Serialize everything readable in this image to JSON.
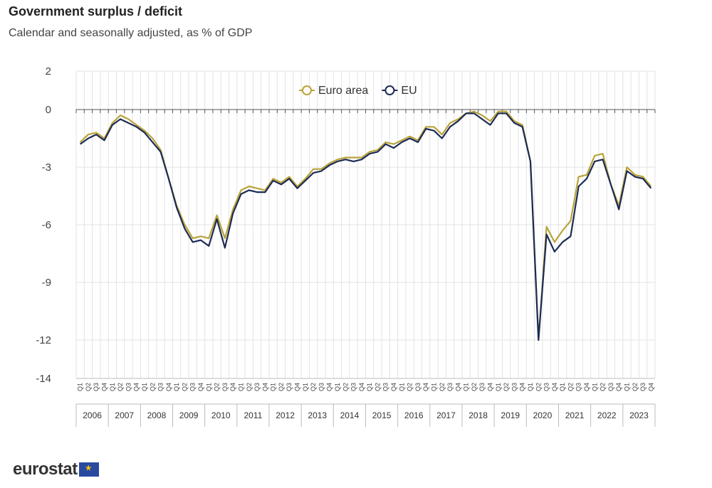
{
  "header": {
    "title": "Government surplus / deficit",
    "subtitle": "Calendar and seasonally adjusted, as % of GDP"
  },
  "logo": {
    "text": "eurostat"
  },
  "colors": {
    "euro_area": "#b9a43a",
    "eu": "#1d2b55",
    "grid": "#e3e3e3"
  },
  "chart_data": {
    "type": "line",
    "title": "Government surplus / deficit",
    "subtitle": "Calendar and seasonally adjusted, as % of GDP",
    "ylim": [
      -14,
      2
    ],
    "yticks": [
      2,
      0,
      -3,
      -6,
      -9,
      -12,
      -14
    ],
    "grid": true,
    "legend": "top-center",
    "quarter_labels": [
      "Q1",
      "Q2",
      "Q3",
      "Q4"
    ],
    "years": [
      "2006",
      "2007",
      "2008",
      "2009",
      "2010",
      "2011",
      "2012",
      "2013",
      "2014",
      "2015",
      "2016",
      "2017",
      "2018",
      "2019",
      "2020",
      "2021",
      "2022",
      "2023"
    ],
    "series": [
      {
        "name": "Euro area",
        "values": [
          -1.7,
          -1.3,
          -1.2,
          -1.5,
          -0.7,
          -0.3,
          -0.5,
          -0.8,
          -1.1,
          -1.5,
          -2.1,
          -3.6,
          -5.0,
          -6.0,
          -6.7,
          -6.6,
          -6.7,
          -5.5,
          -6.7,
          -5.2,
          -4.2,
          -4.0,
          -4.1,
          -4.2,
          -3.6,
          -3.8,
          -3.5,
          -4.0,
          -3.6,
          -3.1,
          -3.1,
          -2.8,
          -2.6,
          -2.5,
          -2.5,
          -2.5,
          -2.2,
          -2.1,
          -1.7,
          -1.8,
          -1.6,
          -1.4,
          -1.6,
          -0.9,
          -0.9,
          -1.3,
          -0.7,
          -0.5,
          -0.2,
          -0.1,
          -0.3,
          -0.6,
          -0.1,
          -0.1,
          -0.6,
          -0.8,
          -2.7,
          -12.0,
          -6.1,
          -6.9,
          -6.3,
          -5.8,
          -3.5,
          -3.4,
          -2.4,
          -2.3,
          -3.9,
          -5.0,
          -3.0,
          -3.4,
          -3.5,
          -4.0
        ]
      },
      {
        "name": "EU",
        "values": [
          -1.8,
          -1.5,
          -1.3,
          -1.6,
          -0.8,
          -0.5,
          -0.7,
          -0.9,
          -1.2,
          -1.7,
          -2.2,
          -3.6,
          -5.1,
          -6.2,
          -6.9,
          -6.8,
          -7.1,
          -5.7,
          -7.2,
          -5.4,
          -4.4,
          -4.2,
          -4.3,
          -4.3,
          -3.7,
          -3.9,
          -3.6,
          -4.1,
          -3.7,
          -3.3,
          -3.2,
          -2.9,
          -2.7,
          -2.6,
          -2.7,
          -2.6,
          -2.3,
          -2.2,
          -1.8,
          -2.0,
          -1.7,
          -1.5,
          -1.7,
          -1.0,
          -1.1,
          -1.5,
          -0.9,
          -0.6,
          -0.2,
          -0.2,
          -0.5,
          -0.8,
          -0.2,
          -0.2,
          -0.7,
          -0.9,
          -2.7,
          -12.0,
          -6.5,
          -7.4,
          -6.9,
          -6.6,
          -4.0,
          -3.6,
          -2.7,
          -2.6,
          -3.9,
          -5.2,
          -3.2,
          -3.5,
          -3.6,
          -4.1
        ]
      }
    ]
  }
}
